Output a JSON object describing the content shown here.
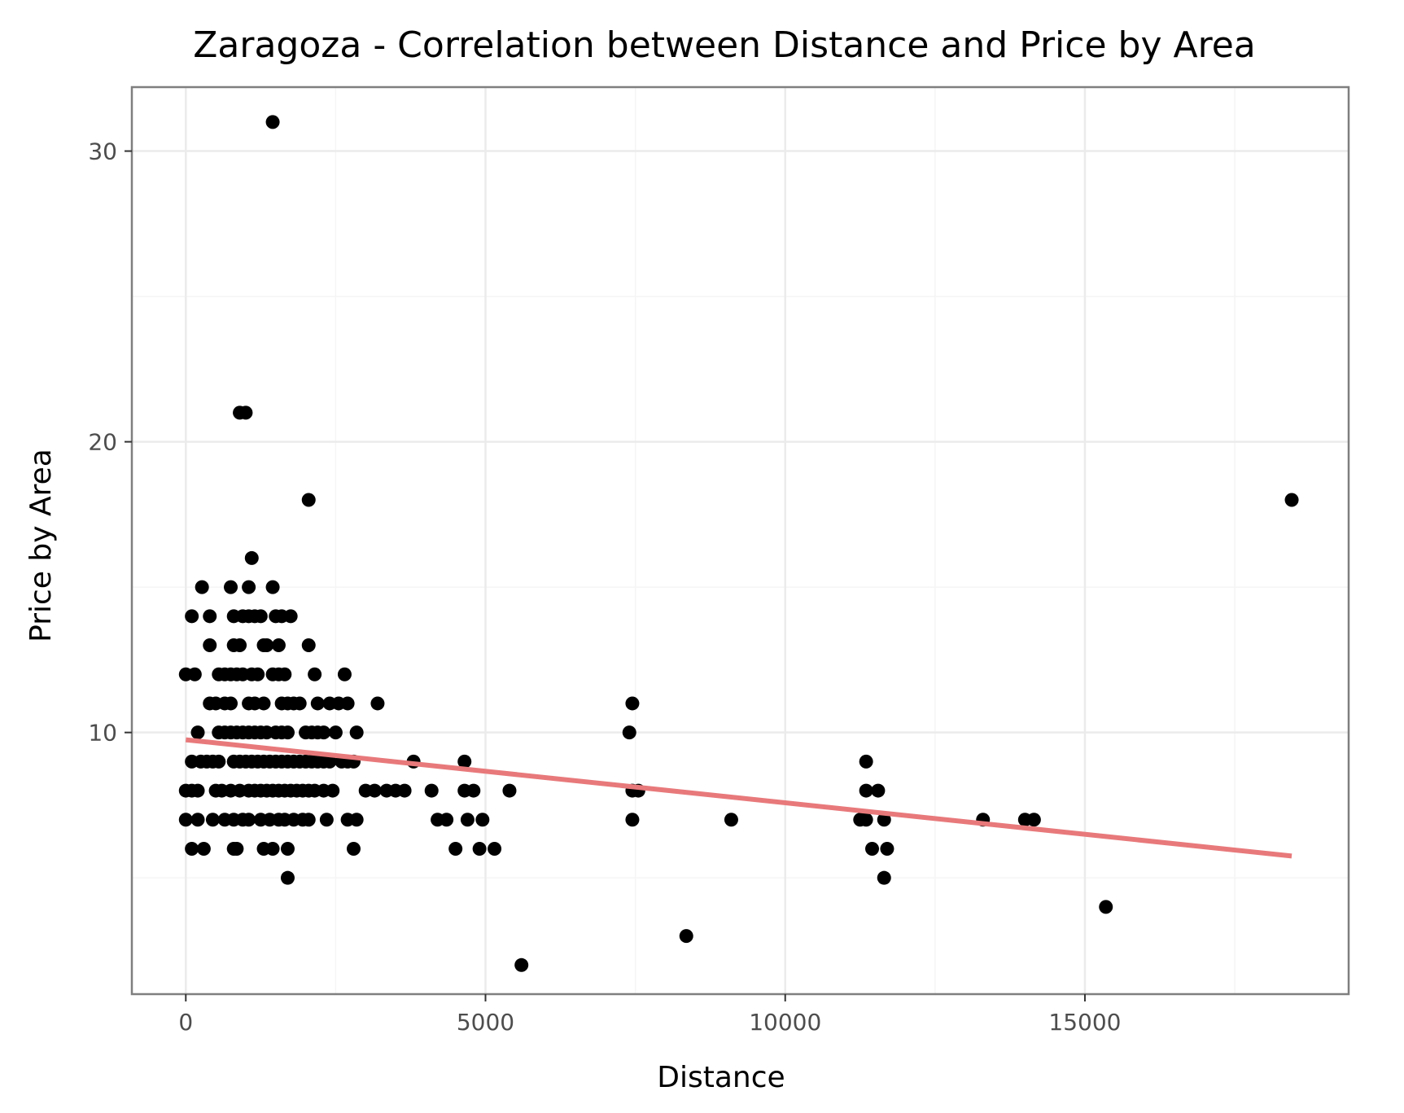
{
  "chart_data": {
    "type": "scatter",
    "title": "Zaragoza - Correlation between Distance and Price by Area",
    "xlabel": "Distance",
    "ylabel": "Price by Area",
    "xlim": [
      -900,
      19400
    ],
    "ylim": [
      1,
      32.2
    ],
    "x_ticks": [
      0,
      5000,
      10000,
      15000
    ],
    "x_tick_labels": [
      "0",
      "5000",
      "10000",
      "15000"
    ],
    "y_ticks": [
      10,
      20,
      30
    ],
    "y_tick_labels": [
      "10",
      "20",
      "30"
    ],
    "x_minor_ticks": [
      2500,
      7500,
      12500,
      17500
    ],
    "y_minor_ticks": [
      5,
      15,
      25
    ],
    "grid": true,
    "colors": {
      "points": "#000000",
      "trend": "#e8797b",
      "panel_border": "#7f7f7f",
      "grid": "#ebebeb"
    },
    "points": [
      [
        1450,
        31
      ],
      [
        900,
        21
      ],
      [
        1000,
        21
      ],
      [
        2050,
        18
      ],
      [
        18450,
        18
      ],
      [
        1100,
        16
      ],
      [
        270,
        15
      ],
      [
        750,
        15
      ],
      [
        1050,
        15
      ],
      [
        1450,
        15
      ],
      [
        100,
        14
      ],
      [
        400,
        14
      ],
      [
        800,
        14
      ],
      [
        950,
        14
      ],
      [
        1050,
        14
      ],
      [
        1150,
        14
      ],
      [
        1250,
        14
      ],
      [
        1500,
        14
      ],
      [
        1600,
        14
      ],
      [
        1750,
        14
      ],
      [
        400,
        13
      ],
      [
        800,
        13
      ],
      [
        900,
        13
      ],
      [
        1300,
        13
      ],
      [
        1350,
        13
      ],
      [
        1550,
        13
      ],
      [
        2050,
        13
      ],
      [
        0,
        12
      ],
      [
        150,
        12
      ],
      [
        550,
        12
      ],
      [
        650,
        12
      ],
      [
        750,
        12
      ],
      [
        850,
        12
      ],
      [
        950,
        12
      ],
      [
        1100,
        12
      ],
      [
        1200,
        12
      ],
      [
        1450,
        12
      ],
      [
        1550,
        12
      ],
      [
        1650,
        12
      ],
      [
        2150,
        12
      ],
      [
        2650,
        12
      ],
      [
        400,
        11
      ],
      [
        500,
        11
      ],
      [
        650,
        11
      ],
      [
        750,
        11
      ],
      [
        1050,
        11
      ],
      [
        1150,
        11
      ],
      [
        1300,
        11
      ],
      [
        1600,
        11
      ],
      [
        1700,
        11
      ],
      [
        1800,
        11
      ],
      [
        1900,
        11
      ],
      [
        2200,
        11
      ],
      [
        2400,
        11
      ],
      [
        2550,
        11
      ],
      [
        2700,
        11
      ],
      [
        3200,
        11
      ],
      [
        7450,
        11
      ],
      [
        200,
        10
      ],
      [
        550,
        10
      ],
      [
        650,
        10
      ],
      [
        750,
        10
      ],
      [
        850,
        10
      ],
      [
        950,
        10
      ],
      [
        1050,
        10
      ],
      [
        1150,
        10
      ],
      [
        1250,
        10
      ],
      [
        1350,
        10
      ],
      [
        1500,
        10
      ],
      [
        1600,
        10
      ],
      [
        1700,
        10
      ],
      [
        2000,
        10
      ],
      [
        2100,
        10
      ],
      [
        2200,
        10
      ],
      [
        2300,
        10
      ],
      [
        2500,
        10
      ],
      [
        2850,
        10
      ],
      [
        7400,
        10
      ],
      [
        100,
        9
      ],
      [
        250,
        9
      ],
      [
        350,
        9
      ],
      [
        450,
        9
      ],
      [
        550,
        9
      ],
      [
        800,
        9
      ],
      [
        900,
        9
      ],
      [
        1000,
        9
      ],
      [
        1100,
        9
      ],
      [
        1200,
        9
      ],
      [
        1300,
        9
      ],
      [
        1400,
        9
      ],
      [
        1500,
        9
      ],
      [
        1600,
        9
      ],
      [
        1700,
        9
      ],
      [
        1800,
        9
      ],
      [
        1900,
        9
      ],
      [
        2000,
        9
      ],
      [
        2100,
        9
      ],
      [
        2200,
        9
      ],
      [
        2300,
        9
      ],
      [
        2400,
        9
      ],
      [
        2600,
        9
      ],
      [
        2700,
        9
      ],
      [
        2800,
        9
      ],
      [
        3800,
        9
      ],
      [
        4650,
        9
      ],
      [
        11350,
        9
      ],
      [
        0,
        8
      ],
      [
        100,
        8
      ],
      [
        200,
        8
      ],
      [
        500,
        8
      ],
      [
        600,
        8
      ],
      [
        750,
        8
      ],
      [
        900,
        8
      ],
      [
        1050,
        8
      ],
      [
        1150,
        8
      ],
      [
        1250,
        8
      ],
      [
        1350,
        8
      ],
      [
        1450,
        8
      ],
      [
        1550,
        8
      ],
      [
        1650,
        8
      ],
      [
        1750,
        8
      ],
      [
        1850,
        8
      ],
      [
        1950,
        8
      ],
      [
        2050,
        8
      ],
      [
        2150,
        8
      ],
      [
        2300,
        8
      ],
      [
        2450,
        8
      ],
      [
        3000,
        8
      ],
      [
        3150,
        8
      ],
      [
        3350,
        8
      ],
      [
        3500,
        8
      ],
      [
        3650,
        8
      ],
      [
        4100,
        8
      ],
      [
        4650,
        8
      ],
      [
        4800,
        8
      ],
      [
        5400,
        8
      ],
      [
        7450,
        8
      ],
      [
        7550,
        8
      ],
      [
        11350,
        8
      ],
      [
        11550,
        8
      ],
      [
        0,
        7
      ],
      [
        200,
        7
      ],
      [
        450,
        7
      ],
      [
        650,
        7
      ],
      [
        800,
        7
      ],
      [
        950,
        7
      ],
      [
        1050,
        7
      ],
      [
        1250,
        7
      ],
      [
        1400,
        7
      ],
      [
        1550,
        7
      ],
      [
        1650,
        7
      ],
      [
        1800,
        7
      ],
      [
        1950,
        7
      ],
      [
        2050,
        7
      ],
      [
        2350,
        7
      ],
      [
        2700,
        7
      ],
      [
        2850,
        7
      ],
      [
        4200,
        7
      ],
      [
        4350,
        7
      ],
      [
        4700,
        7
      ],
      [
        4950,
        7
      ],
      [
        7450,
        7
      ],
      [
        9100,
        7
      ],
      [
        11250,
        7
      ],
      [
        11350,
        7
      ],
      [
        11650,
        7
      ],
      [
        13300,
        7
      ],
      [
        14000,
        7
      ],
      [
        14150,
        7
      ],
      [
        100,
        6
      ],
      [
        300,
        6
      ],
      [
        800,
        6
      ],
      [
        850,
        6
      ],
      [
        1300,
        6
      ],
      [
        1450,
        6
      ],
      [
        1700,
        6
      ],
      [
        2800,
        6
      ],
      [
        4500,
        6
      ],
      [
        4900,
        6
      ],
      [
        5150,
        6
      ],
      [
        11450,
        6
      ],
      [
        11700,
        6
      ],
      [
        1700,
        5
      ],
      [
        11650,
        5
      ],
      [
        15350,
        4
      ],
      [
        8350,
        3
      ],
      [
        5600,
        2
      ]
    ],
    "trend_line": {
      "x": [
        0,
        18450
      ],
      "y": [
        9.75,
        5.75
      ]
    }
  }
}
